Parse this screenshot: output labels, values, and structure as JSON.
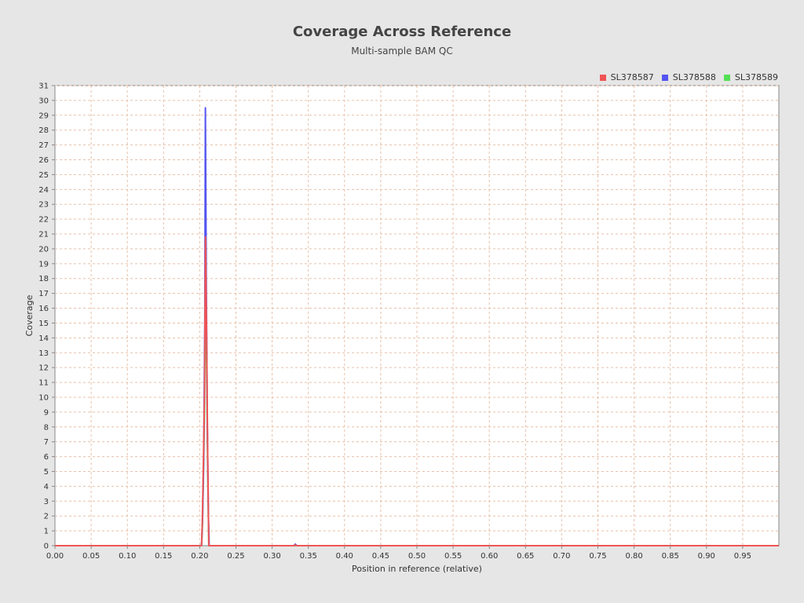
{
  "chart_data": {
    "type": "line",
    "title": "Coverage Across Reference",
    "subtitle": "Multi-sample BAM QC",
    "xlabel": "Position in reference (relative)",
    "ylabel": "Coverage",
    "xlim": [
      0,
      1
    ],
    "ylim": [
      0,
      31
    ],
    "x_ticks": [
      0.0,
      0.05,
      0.1,
      0.15,
      0.2,
      0.25,
      0.3,
      0.35,
      0.4,
      0.45,
      0.5,
      0.55,
      0.6,
      0.65,
      0.7,
      0.75,
      0.8,
      0.85,
      0.9,
      0.95
    ],
    "y_ticks": [
      0,
      1,
      2,
      3,
      4,
      5,
      6,
      7,
      8,
      9,
      10,
      11,
      12,
      13,
      14,
      15,
      16,
      17,
      18,
      19,
      20,
      21,
      22,
      23,
      24,
      25,
      26,
      27,
      28,
      29,
      30,
      31
    ],
    "grid": true,
    "legend_position": "top-right",
    "series": [
      {
        "name": "SL378587",
        "color": "#f05454",
        "points": [
          [
            0.0,
            0
          ],
          [
            0.2025,
            0
          ],
          [
            0.2035,
            1.5
          ],
          [
            0.205,
            5.5
          ],
          [
            0.2065,
            10
          ],
          [
            0.208,
            20.8
          ],
          [
            0.2095,
            14
          ],
          [
            0.211,
            6
          ],
          [
            0.2125,
            0
          ],
          [
            0.33,
            0
          ],
          [
            0.332,
            0.05
          ],
          [
            0.334,
            0
          ],
          [
            1.0,
            0
          ]
        ]
      },
      {
        "name": "SL378588",
        "color": "#5454f0",
        "points": [
          [
            0.0,
            0
          ],
          [
            0.2025,
            0
          ],
          [
            0.204,
            2
          ],
          [
            0.2055,
            6
          ],
          [
            0.207,
            15
          ],
          [
            0.2078,
            29.5
          ],
          [
            0.209,
            18
          ],
          [
            0.2105,
            8
          ],
          [
            0.212,
            2
          ],
          [
            0.213,
            0
          ],
          [
            0.33,
            0
          ],
          [
            0.332,
            0.1
          ],
          [
            0.334,
            0
          ],
          [
            1.0,
            0
          ]
        ]
      },
      {
        "name": "SL378589",
        "color": "#54e054",
        "points": [
          [
            0.0,
            0
          ],
          [
            0.2025,
            0
          ],
          [
            0.2035,
            1
          ],
          [
            0.205,
            4.5
          ],
          [
            0.2065,
            9
          ],
          [
            0.2078,
            18
          ],
          [
            0.2095,
            12
          ],
          [
            0.211,
            5
          ],
          [
            0.2125,
            0
          ],
          [
            1.0,
            0
          ]
        ]
      }
    ]
  }
}
